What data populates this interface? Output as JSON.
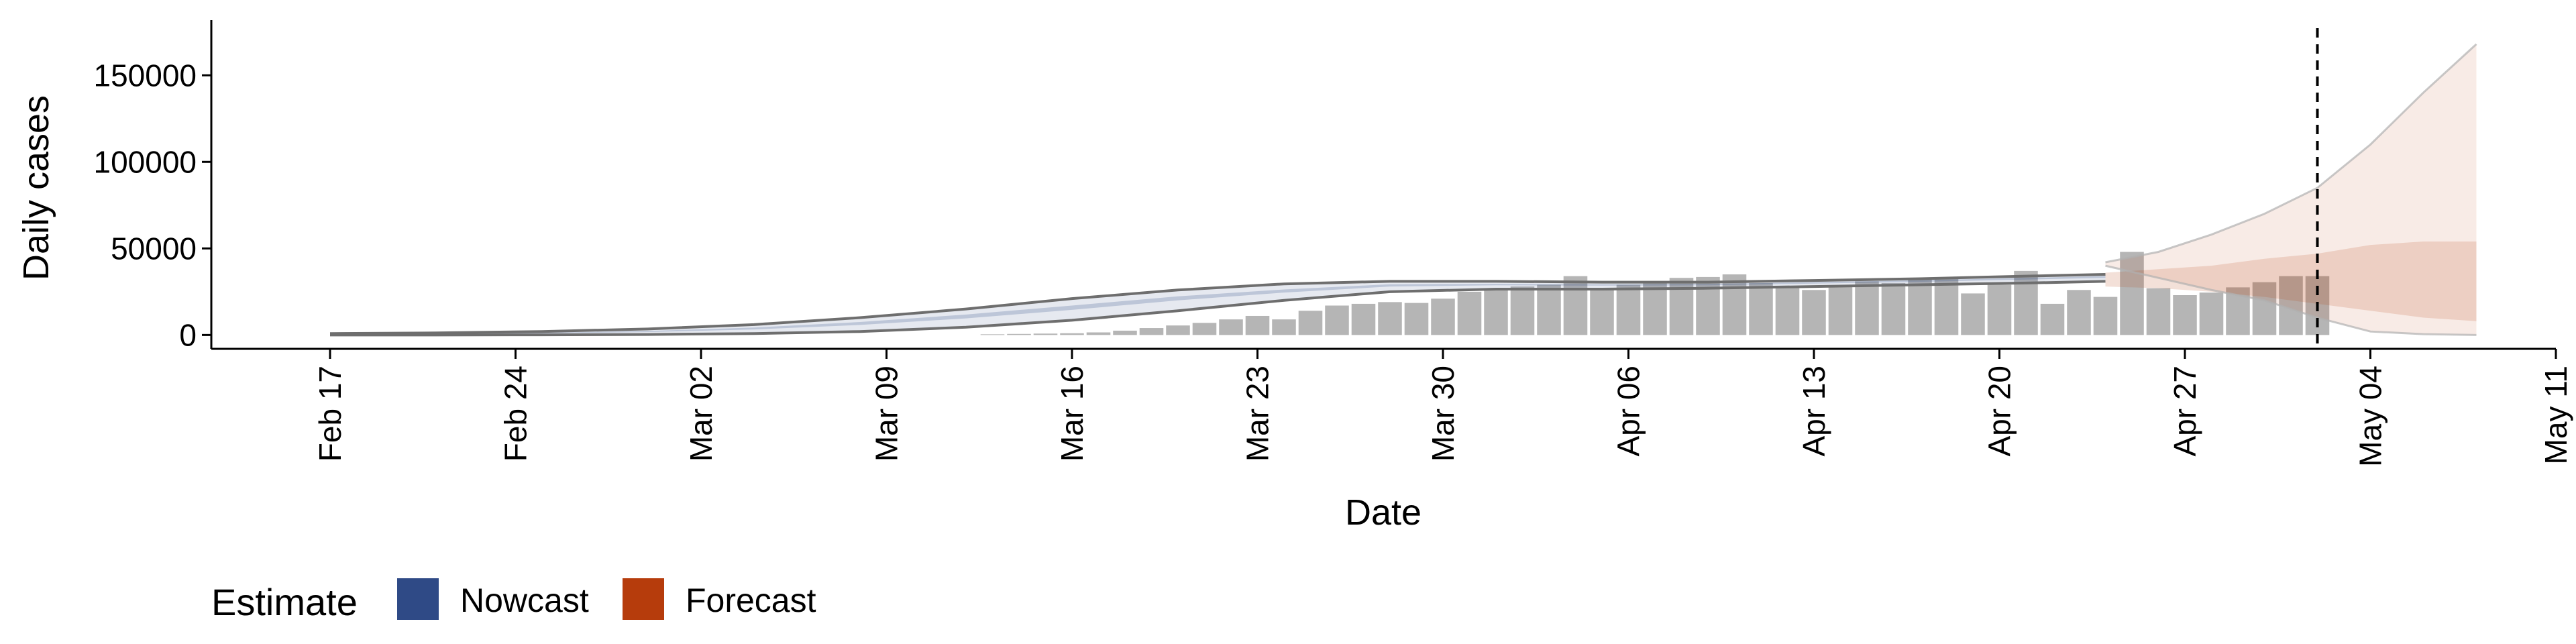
{
  "chart_data": {
    "type": "bar",
    "xlabel": "Date",
    "ylabel": "Daily cases",
    "x_ticks": [
      "Feb 17",
      "Feb 24",
      "Mar 02",
      "Mar 09",
      "Mar 16",
      "Mar 23",
      "Mar 30",
      "Apr 06",
      "Apr 13",
      "Apr 20",
      "Apr 27",
      "May 04",
      "May 11"
    ],
    "y_ticks": [
      "0",
      "50000",
      "100000",
      "150000"
    ],
    "ylim": [
      -8000,
      178000
    ],
    "grid": false,
    "legend": {
      "title": "Estimate",
      "position": "bottom-left",
      "entries": [
        {
          "label": "Nowcast",
          "color": "#2f4a86"
        },
        {
          "label": "Forecast",
          "color": "#b63c0c"
        }
      ]
    },
    "reported_cases": {
      "color": "#b5b5b5",
      "dates": [
        "2020-03-13",
        "2020-03-14",
        "2020-03-15",
        "2020-03-16",
        "2020-03-17",
        "2020-03-18",
        "2020-03-19",
        "2020-03-20",
        "2020-03-21",
        "2020-03-22",
        "2020-03-23",
        "2020-03-24",
        "2020-03-25",
        "2020-03-26",
        "2020-03-27",
        "2020-03-28",
        "2020-03-29",
        "2020-03-30",
        "2020-03-31",
        "2020-04-01",
        "2020-04-02",
        "2020-04-03",
        "2020-04-04",
        "2020-04-05",
        "2020-04-06",
        "2020-04-07",
        "2020-04-08",
        "2020-04-09",
        "2020-04-10",
        "2020-04-11",
        "2020-04-12",
        "2020-04-13",
        "2020-04-14",
        "2020-04-15",
        "2020-04-16",
        "2020-04-17",
        "2020-04-18",
        "2020-04-19",
        "2020-04-20",
        "2020-04-21",
        "2020-04-22",
        "2020-04-23",
        "2020-04-24",
        "2020-04-25",
        "2020-04-26",
        "2020-04-27",
        "2020-04-28",
        "2020-04-29",
        "2020-04-30",
        "2020-05-01",
        "2020-05-02"
      ],
      "values": [
        400,
        600,
        800,
        1000,
        1500,
        2500,
        4000,
        5500,
        7000,
        9000,
        11000,
        9000,
        14000,
        17000,
        18000,
        19000,
        18500,
        21000,
        25000,
        27000,
        28000,
        29000,
        34000,
        26000,
        29000,
        31000,
        33000,
        33500,
        35000,
        30000,
        28000,
        26000,
        28000,
        31000,
        30000,
        32000,
        33000,
        24000,
        29000,
        37000,
        18000,
        26000,
        22000,
        48000,
        27000,
        23000,
        24500,
        27500,
        30500,
        34000,
        34000
      ]
    },
    "nowcast": {
      "color": "#2f4a86",
      "dates": [
        "2020-02-17",
        "2020-02-21",
        "2020-02-25",
        "2020-02-29",
        "2020-03-04",
        "2020-03-08",
        "2020-03-12",
        "2020-03-16",
        "2020-03-20",
        "2020-03-24",
        "2020-03-28",
        "2020-04-01",
        "2020-04-05",
        "2020-04-09",
        "2020-04-13",
        "2020-04-17",
        "2020-04-21",
        "2020-04-24"
      ],
      "lower_90": [
        0,
        0,
        100,
        300,
        800,
        2000,
        4500,
        8500,
        14000,
        20000,
        25000,
        26500,
        26500,
        27000,
        28000,
        29000,
        30000,
        31000
      ],
      "upper_90": [
        800,
        1200,
        2000,
        3500,
        6000,
        10000,
        15000,
        21000,
        26000,
        29500,
        31000,
        31000,
        30500,
        30500,
        31500,
        32500,
        34000,
        35000
      ],
      "lower_50": [
        300,
        500,
        900,
        1700,
        3200,
        5800,
        9600,
        14500,
        20000,
        24500,
        28000,
        28700,
        28500,
        28700,
        29700,
        30700,
        32000,
        33000
      ],
      "upper_50": [
        500,
        800,
        1300,
        2300,
        4300,
        7500,
        11800,
        17000,
        22300,
        26300,
        29300,
        29600,
        29300,
        29400,
        30500,
        31600,
        33000,
        34000
      ]
    },
    "forecast": {
      "color": "#b63c0c",
      "dates": [
        "2020-04-24",
        "2020-04-26",
        "2020-04-28",
        "2020-04-30",
        "2020-05-02",
        "2020-05-04",
        "2020-05-06",
        "2020-05-08"
      ],
      "lower_90": [
        40000,
        33000,
        26000,
        20000,
        10000,
        2000,
        500,
        0
      ],
      "upper_90": [
        42000,
        48000,
        58000,
        70000,
        85000,
        110000,
        140000,
        168000
      ],
      "lower_50": [
        28000,
        27000,
        25000,
        22000,
        18000,
        14000,
        10000,
        8000
      ],
      "upper_50": [
        36000,
        38000,
        40000,
        44000,
        47000,
        52000,
        54000,
        54000
      ]
    },
    "reference_line": {
      "date": "2020-05-02",
      "style": "dashed"
    }
  }
}
